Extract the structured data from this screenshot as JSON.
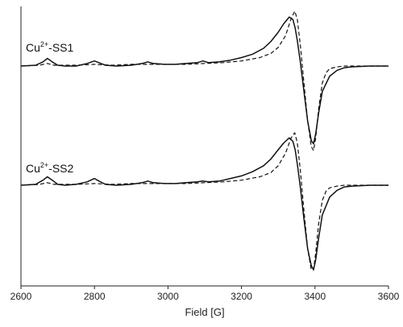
{
  "chart_data": {
    "type": "line",
    "xlabel": "Field [G]",
    "ylabel": "",
    "xlim": [
      2600,
      3600
    ],
    "ylim": [
      -1,
      1
    ],
    "grid": false,
    "x_ticks": [
      2600,
      2800,
      3000,
      3200,
      3400,
      3600
    ],
    "panels": [
      {
        "label": "Cu2+-SS1",
        "label_parts": [
          "Cu",
          "2+",
          "-SS1"
        ],
        "experimental": {
          "style": "solid",
          "x": [
            2600,
            2640,
            2660,
            2672,
            2685,
            2700,
            2720,
            2750,
            2780,
            2800,
            2812,
            2830,
            2860,
            2900,
            2930,
            2945,
            2960,
            2990,
            3020,
            3050,
            3080,
            3095,
            3110,
            3140,
            3170,
            3200,
            3230,
            3260,
            3280,
            3300,
            3315,
            3330,
            3340,
            3346,
            3352,
            3360,
            3370,
            3380,
            3390,
            3396,
            3402,
            3410,
            3420,
            3440,
            3460,
            3480,
            3500,
            3550,
            3600
          ],
          "y": [
            0.0,
            0.01,
            0.05,
            0.09,
            0.05,
            0.01,
            0.0,
            0.0,
            0.03,
            0.06,
            0.04,
            0.01,
            0.0,
            0.01,
            0.03,
            0.05,
            0.03,
            0.02,
            0.02,
            0.03,
            0.04,
            0.06,
            0.04,
            0.05,
            0.07,
            0.1,
            0.14,
            0.21,
            0.29,
            0.4,
            0.5,
            0.58,
            0.55,
            0.45,
            0.3,
            0.05,
            -0.3,
            -0.65,
            -0.88,
            -0.92,
            -0.8,
            -0.55,
            -0.3,
            -0.12,
            -0.05,
            -0.02,
            -0.01,
            0.0,
            0.0
          ]
        },
        "simulated": {
          "style": "dashed",
          "x": [
            2600,
            2650,
            2672,
            2690,
            2750,
            2800,
            2850,
            2900,
            2950,
            3000,
            3050,
            3100,
            3150,
            3200,
            3250,
            3280,
            3300,
            3320,
            3335,
            3345,
            3352,
            3360,
            3370,
            3380,
            3390,
            3396,
            3402,
            3410,
            3420,
            3430,
            3440,
            3460,
            3480,
            3500,
            3600
          ],
          "y": [
            0.0,
            0.01,
            0.03,
            0.01,
            0.01,
            0.02,
            0.01,
            0.02,
            0.02,
            0.02,
            0.02,
            0.03,
            0.04,
            0.06,
            0.1,
            0.15,
            0.22,
            0.36,
            0.56,
            0.65,
            0.55,
            0.25,
            -0.2,
            -0.65,
            -0.95,
            -1.0,
            -0.85,
            -0.5,
            -0.2,
            -0.08,
            -0.03,
            -0.01,
            0.0,
            0.0,
            0.0
          ]
        }
      },
      {
        "label": "Cu2+-SS2",
        "label_parts": [
          "Cu",
          "2+",
          "-SS2"
        ],
        "experimental": {
          "style": "solid",
          "x": [
            2600,
            2640,
            2660,
            2672,
            2685,
            2700,
            2720,
            2750,
            2780,
            2800,
            2812,
            2830,
            2860,
            2900,
            2930,
            2945,
            2960,
            2990,
            3020,
            3050,
            3080,
            3095,
            3110,
            3140,
            3170,
            3200,
            3230,
            3260,
            3280,
            3300,
            3315,
            3330,
            3340,
            3346,
            3352,
            3360,
            3370,
            3380,
            3390,
            3396,
            3402,
            3410,
            3420,
            3440,
            3460,
            3480,
            3500,
            3550,
            3600
          ],
          "y": [
            0.0,
            0.01,
            0.06,
            0.1,
            0.06,
            0.01,
            0.0,
            0.01,
            0.04,
            0.08,
            0.05,
            0.01,
            0.0,
            0.01,
            0.03,
            0.05,
            0.03,
            0.02,
            0.02,
            0.03,
            0.04,
            0.05,
            0.04,
            0.05,
            0.08,
            0.11,
            0.16,
            0.23,
            0.31,
            0.42,
            0.5,
            0.56,
            0.52,
            0.42,
            0.25,
            -0.02,
            -0.4,
            -0.75,
            -0.95,
            -1.0,
            -0.88,
            -0.62,
            -0.35,
            -0.14,
            -0.06,
            -0.02,
            -0.01,
            0.0,
            0.0
          ]
        },
        "simulated": {
          "style": "dashed",
          "x": [
            2600,
            2650,
            2672,
            2690,
            2750,
            2800,
            2850,
            2900,
            2950,
            3000,
            3050,
            3100,
            3150,
            3200,
            3250,
            3280,
            3300,
            3320,
            3335,
            3345,
            3352,
            3360,
            3370,
            3380,
            3390,
            3396,
            3402,
            3410,
            3420,
            3430,
            3440,
            3460,
            3480,
            3500,
            3600
          ],
          "y": [
            0.0,
            0.01,
            0.03,
            0.01,
            0.01,
            0.02,
            0.01,
            0.02,
            0.02,
            0.02,
            0.02,
            0.03,
            0.04,
            0.06,
            0.1,
            0.15,
            0.23,
            0.38,
            0.56,
            0.62,
            0.5,
            0.18,
            -0.3,
            -0.75,
            -1.0,
            -1.0,
            -0.8,
            -0.45,
            -0.18,
            -0.07,
            -0.03,
            -0.01,
            0.0,
            0.0,
            0.0
          ]
        }
      }
    ]
  }
}
